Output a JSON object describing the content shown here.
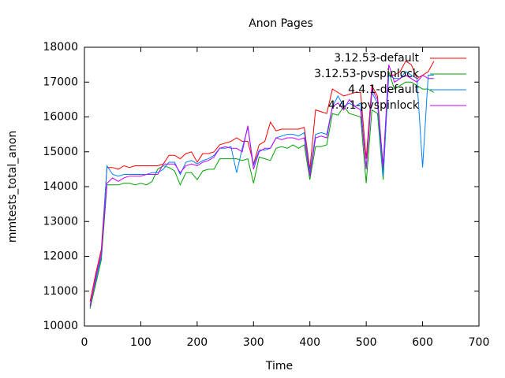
{
  "chart_data": {
    "type": "line",
    "title": "Anon Pages",
    "x_label": "Time",
    "y_label": "mmtests_total_anon",
    "xlim": [
      0,
      700
    ],
    "xticks": [
      0,
      100,
      200,
      300,
      400,
      500,
      600,
      700
    ],
    "ylim": [
      10000,
      18000
    ],
    "yticks": [
      10000,
      11000,
      12000,
      13000,
      14000,
      15000,
      16000,
      17000,
      18000
    ],
    "grid": false,
    "legend": "top-right",
    "x": [
      10,
      20,
      30,
      40,
      50,
      60,
      70,
      80,
      90,
      100,
      110,
      120,
      130,
      140,
      150,
      160,
      170,
      180,
      190,
      200,
      210,
      220,
      230,
      240,
      250,
      260,
      270,
      280,
      290,
      300,
      310,
      320,
      330,
      340,
      350,
      360,
      370,
      380,
      390,
      400,
      410,
      420,
      430,
      440,
      450,
      460,
      470,
      480,
      490,
      500,
      510,
      520,
      530,
      540,
      550,
      560,
      570,
      580,
      590,
      600,
      610,
      620
    ],
    "series": [
      {
        "name": "3.12.53-default",
        "color": "#ff0000",
        "values": [
          10700,
          11500,
          12200,
          14550,
          14550,
          14500,
          14600,
          14550,
          14600,
          14600,
          14600,
          14600,
          14600,
          14650,
          14900,
          14900,
          14800,
          14950,
          15000,
          14700,
          14950,
          14950,
          15000,
          15200,
          15250,
          15300,
          15400,
          15300,
          15300,
          14650,
          15200,
          15300,
          15850,
          15600,
          15650,
          15650,
          15650,
          15650,
          15700,
          14500,
          16200,
          16150,
          16100,
          16800,
          16700,
          16600,
          16650,
          16700,
          16700,
          14800,
          16900,
          16600,
          14500,
          17200,
          17200,
          17300,
          17600,
          17500,
          17100,
          17200,
          17300,
          17600
        ]
      },
      {
        "name": "3.12.53-pvspinlock",
        "color": "#00a000",
        "values": [
          10500,
          11200,
          11900,
          14050,
          14050,
          14050,
          14100,
          14100,
          14050,
          14100,
          14050,
          14150,
          14500,
          14600,
          14550,
          14450,
          14050,
          14400,
          14400,
          14200,
          14450,
          14500,
          14500,
          14800,
          14800,
          14800,
          14800,
          14750,
          14800,
          14100,
          14850,
          14800,
          14750,
          15100,
          15150,
          15100,
          15200,
          15100,
          15200,
          14200,
          15150,
          15150,
          15200,
          16100,
          16050,
          16300,
          16100,
          16050,
          16000,
          14100,
          16200,
          16100,
          14200,
          17300,
          16800,
          16900,
          17000,
          17000,
          16900,
          16800,
          16800,
          16700
        ]
      },
      {
        "name": "4.4.1-default",
        "color": "#0080ff",
        "values": [
          10600,
          11300,
          12000,
          14600,
          14350,
          14300,
          14350,
          14350,
          14350,
          14350,
          14350,
          14400,
          14400,
          14500,
          14700,
          14700,
          14350,
          14700,
          14750,
          14650,
          14750,
          14800,
          14900,
          15100,
          15100,
          15150,
          14400,
          15100,
          15700,
          14600,
          15050,
          15050,
          15100,
          15400,
          15450,
          15500,
          15500,
          15450,
          15550,
          14400,
          15500,
          15550,
          15500,
          16300,
          16600,
          16300,
          16400,
          16300,
          16400,
          14500,
          16700,
          16400,
          14300,
          17200,
          17100,
          17100,
          17300,
          17200,
          17100,
          14550,
          17200,
          17200
        ]
      },
      {
        "name": "4.4.1-pvspinlock",
        "color": "#c000ff",
        "values": [
          10550,
          11400,
          12100,
          14100,
          14250,
          14150,
          14250,
          14300,
          14300,
          14300,
          14350,
          14350,
          14350,
          14650,
          14650,
          14650,
          14400,
          14600,
          14650,
          14600,
          14700,
          14750,
          14850,
          15100,
          15150,
          15100,
          15100,
          15000,
          15750,
          14500,
          15000,
          15100,
          15100,
          15400,
          15350,
          15400,
          15400,
          15350,
          15400,
          14300,
          15400,
          15450,
          15400,
          16300,
          16400,
          16200,
          16500,
          16300,
          16200,
          14500,
          16800,
          16500,
          14600,
          17500,
          17000,
          17100,
          17200,
          17100,
          17000,
          17200,
          17100,
          17100
        ]
      }
    ]
  }
}
